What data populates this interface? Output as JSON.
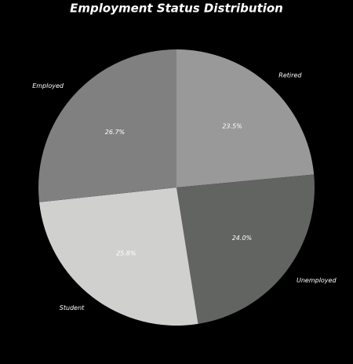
{
  "chart_data": {
    "type": "pie",
    "title": "Employment Status Distribution",
    "categories": [
      "Retired",
      "Unemployed",
      "Student",
      "Employed"
    ],
    "values": [
      23.5,
      24.0,
      25.8,
      26.7
    ],
    "value_labels": [
      "23.5%",
      "24.0%",
      "25.8%",
      "26.7%"
    ],
    "colors": [
      "#999999",
      "#626462",
      "#d0d0ce",
      "#808080"
    ]
  }
}
